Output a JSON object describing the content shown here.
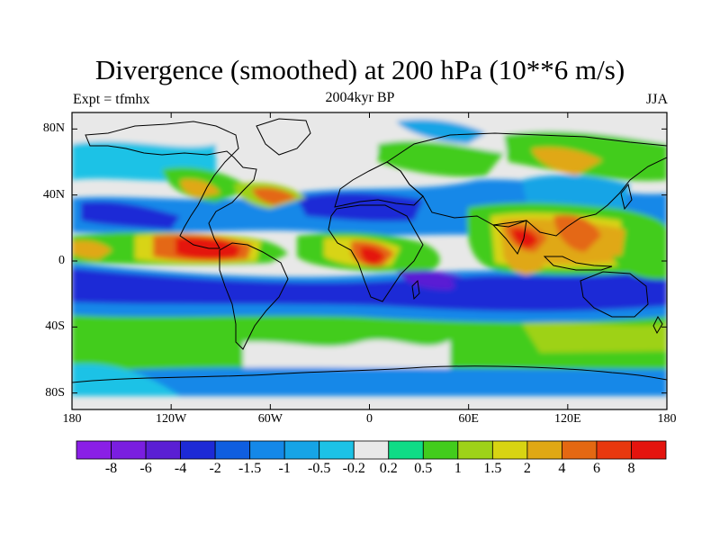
{
  "title": "Divergence (smoothed) at 200 hPa (10**6 m/s)",
  "subtitle_left": "Expt = tfmhx",
  "subtitle_center": "2004kyr BP",
  "subtitle_right": "JJA",
  "map": {
    "projection": "cylindrical equidistant",
    "lon_range": [
      -180,
      180
    ],
    "lat_range": [
      -90,
      90
    ],
    "lat_ticks": [
      {
        "value": 80,
        "label": "80N"
      },
      {
        "value": 40,
        "label": "40N"
      },
      {
        "value": 0,
        "label": "0"
      },
      {
        "value": -40,
        "label": "40S"
      },
      {
        "value": -80,
        "label": "80S"
      }
    ],
    "lon_ticks": [
      {
        "value": -180,
        "label": "180"
      },
      {
        "value": -120,
        "label": "120W"
      },
      {
        "value": -60,
        "label": "60W"
      },
      {
        "value": 0,
        "label": "0"
      },
      {
        "value": 60,
        "label": "60E"
      },
      {
        "value": 120,
        "label": "120E"
      },
      {
        "value": 180,
        "label": "180"
      }
    ]
  },
  "colorbar": {
    "labels": [
      "-8",
      "-6",
      "-4",
      "-2",
      "-1.5",
      "-1",
      "-0.5",
      "-0.2",
      "0.2",
      "0.5",
      "1",
      "1.5",
      "2",
      "4",
      "6",
      "8"
    ],
    "colors": [
      "#8a1fe6",
      "#7a1ee0",
      "#5a1fd4",
      "#1d2ad6",
      "#0f5ee0",
      "#1488e8",
      "#16a4e6",
      "#1cc2e6",
      "#e8e8e8",
      "#0fdc86",
      "#42cc1c",
      "#9ed218",
      "#d8d412",
      "#e0a814",
      "#e46812",
      "#e8380e",
      "#e4140e"
    ]
  },
  "chart_data": {
    "type": "heatmap",
    "title": "Divergence (smoothed) at 200 hPa (10**6 m/s)",
    "units": "10**6 m/s",
    "level": "200 hPa",
    "season": "JJA",
    "experiment": "tfmhx",
    "period": "2004kyr BP",
    "xlabel": "",
    "ylabel": "",
    "x_range": [
      -180,
      180
    ],
    "y_range": [
      -90,
      90
    ],
    "contour_levels": [
      -8,
      -6,
      -4,
      -2,
      -1.5,
      -1,
      -0.5,
      -0.2,
      0.2,
      0.5,
      1,
      1.5,
      2,
      4,
      6,
      8
    ],
    "features": [
      {
        "region": "eastern equatorial Pacific (~100W, 5N)",
        "value_range": [
          6,
          8
        ]
      },
      {
        "region": "central/west Africa (~10E, 2N)",
        "value_range": [
          6,
          8
        ]
      },
      {
        "region": "Bay of Bengal / SE Asia (~95E, 15N)",
        "value_range": [
          6,
          8
        ]
      },
      {
        "region": "western Pacific warm pool (~130E, 10N)",
        "value_range": [
          2,
          6
        ]
      },
      {
        "region": "southern tropical belt (~10-25S)",
        "value_range": [
          -4,
          -2
        ]
      },
      {
        "region": "mid-latitude Southern Hemisphere (~45S)",
        "value_range": [
          0.5,
          2
        ]
      },
      {
        "region": "Antarctic coast (~70S)",
        "value_range": [
          -1.5,
          -0.5
        ]
      }
    ]
  }
}
